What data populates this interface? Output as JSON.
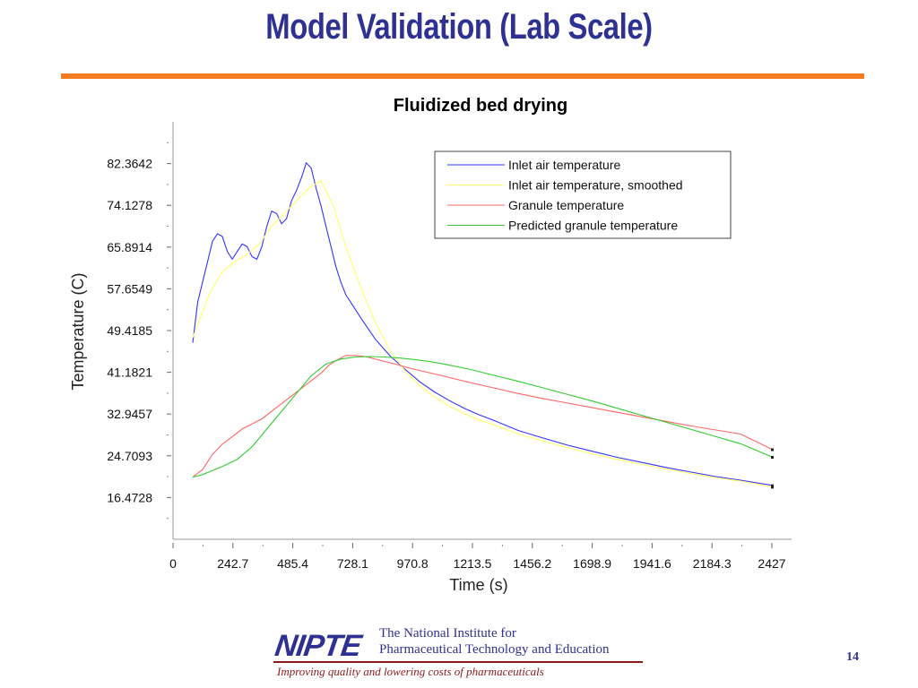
{
  "slide": {
    "title": "Model Validation (Lab Scale)",
    "page_number": "14",
    "accent_color": "#f47b20",
    "title_color": "#2e3192"
  },
  "footer": {
    "logo_text": "NIPTE",
    "institute_line1": "The National Institute for",
    "institute_line2": "Pharmaceutical Technology and Education",
    "tagline": "Improving quality and lowering costs of pharmaceuticals"
  },
  "chart_data": {
    "type": "line",
    "title": "Fluidized bed drying",
    "xlabel": "Time (s)",
    "ylabel": "Temperature (C)",
    "xlim": [
      0,
      2427
    ],
    "ylim": [
      8.2364,
      90.6006
    ],
    "x_ticks": [
      0,
      242.7,
      485.4,
      728.1,
      970.8,
      1213.5,
      1456.2,
      1698.9,
      1941.6,
      2184.3,
      2427
    ],
    "x_tick_labels": [
      "0",
      "242.7",
      "485.4",
      "728.1",
      "970.8",
      "1213.5",
      "1456.2",
      "1698.9",
      "1941.6",
      "2184.3",
      "2427"
    ],
    "y_ticks": [
      16.4728,
      24.7093,
      32.9457,
      41.1821,
      49.4185,
      57.6549,
      65.8914,
      74.1278,
      82.3642
    ],
    "y_tick_labels": [
      "16.4728",
      "24.7093",
      "32.9457",
      "41.1821",
      "49.4185",
      "57.6549",
      "65.8914",
      "74.1278",
      "82.3642"
    ],
    "grid": false,
    "legend_position": "top-right",
    "series": [
      {
        "name": "Inlet air temperature",
        "color": "#3333ff",
        "x": [
          80,
          100,
          120,
          140,
          160,
          180,
          200,
          220,
          240,
          260,
          280,
          300,
          320,
          340,
          360,
          380,
          400,
          420,
          440,
          460,
          480,
          500,
          520,
          540,
          560,
          580,
          600,
          620,
          640,
          660,
          680,
          700,
          760,
          820,
          880,
          940,
          1000,
          1060,
          1120,
          1180,
          1240,
          1300,
          1400,
          1500,
          1600,
          1700,
          1800,
          1900,
          2000,
          2100,
          2200,
          2300,
          2427
        ],
        "y": [
          47,
          55,
          59,
          63,
          67,
          68.5,
          68,
          65,
          63.5,
          65,
          66.5,
          66,
          64,
          63.5,
          66,
          70,
          73,
          72.5,
          70.5,
          71.5,
          75,
          77,
          79.5,
          82.5,
          81.5,
          77.5,
          74,
          70,
          66,
          62,
          59,
          56.5,
          52,
          47.7,
          44.4,
          41.8,
          39.3,
          37.3,
          35.6,
          34.1,
          32.8,
          31.7,
          29.7,
          28.2,
          26.8,
          25.6,
          24.4,
          23.4,
          22.4,
          21.5,
          20.6,
          19.9,
          18.9
        ]
      },
      {
        "name": "Inlet air temperature, smoothed",
        "color": "#ffff66",
        "x": [
          80,
          150,
          200,
          250,
          300,
          350,
          400,
          450,
          500,
          550,
          600,
          650,
          700,
          760,
          820,
          880,
          940,
          1000,
          1060,
          1120,
          1180,
          1240,
          1300,
          1400,
          1500,
          1600,
          1700,
          1800,
          1900,
          2000,
          2100,
          2200,
          2300,
          2427
        ],
        "y": [
          48,
          57,
          61,
          63,
          64.5,
          66.5,
          70,
          72.5,
          75,
          77.5,
          79,
          74,
          66,
          58,
          51,
          45.5,
          41.5,
          38.5,
          36.3,
          34.5,
          33,
          31.8,
          30.8,
          29,
          27.6,
          26.3,
          25.1,
          24,
          23,
          22.1,
          21.2,
          20.4,
          19.7,
          18.6
        ]
      },
      {
        "name": "Granule temperature",
        "color": "#ff6666",
        "x": [
          80,
          120,
          160,
          200,
          240,
          280,
          320,
          360,
          400,
          440,
          480,
          520,
          560,
          600,
          630,
          660,
          700,
          740,
          780,
          820,
          860,
          900,
          960,
          1020,
          1100,
          1200,
          1300,
          1400,
          1500,
          1600,
          1700,
          1800,
          1900,
          2000,
          2100,
          2200,
          2300,
          2427
        ],
        "y": [
          20.5,
          22,
          25,
          27,
          28.5,
          30,
          31,
          32,
          33.5,
          35,
          36.5,
          38,
          39.5,
          41,
          42.5,
          43.5,
          44.5,
          44.5,
          44.3,
          43.8,
          43.3,
          42.8,
          42,
          41.3,
          40.4,
          39.2,
          38.1,
          37,
          36,
          35.1,
          34.2,
          33.3,
          32.4,
          31.5,
          30.6,
          29.8,
          29.0,
          26
        ]
      },
      {
        "name": "Predicted granule temperature",
        "color": "#33cc33",
        "x": [
          80,
          120,
          160,
          200,
          260,
          320,
          380,
          440,
          500,
          560,
          620,
          680,
          740,
          800,
          860,
          920,
          980,
          1040,
          1100,
          1200,
          1300,
          1400,
          1500,
          1600,
          1700,
          1800,
          1900,
          2000,
          2100,
          2200,
          2300,
          2427
        ],
        "y": [
          20.5,
          21,
          21.8,
          22.6,
          24,
          26.5,
          30,
          33.5,
          37,
          40.5,
          42.8,
          43.8,
          44.2,
          44.3,
          44.2,
          44.0,
          43.7,
          43.3,
          42.8,
          41.8,
          40.6,
          39.4,
          38.1,
          36.8,
          35.5,
          34.1,
          32.7,
          31.3,
          29.9,
          28.5,
          27.1,
          24.5
        ]
      }
    ]
  }
}
